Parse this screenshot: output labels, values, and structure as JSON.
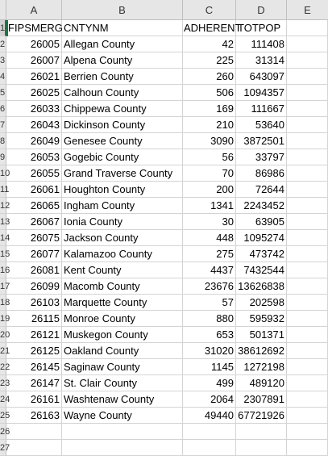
{
  "columns": [
    "A",
    "B",
    "C",
    "D",
    "E"
  ],
  "row_numbers": [
    "1",
    "2",
    "3",
    "4",
    "5",
    "6",
    "7",
    "8",
    "9",
    "10",
    "11",
    "12",
    "13",
    "14",
    "15",
    "16",
    "17",
    "18",
    "19",
    "20",
    "21",
    "22",
    "23",
    "24",
    "25",
    "26",
    "27"
  ],
  "header": {
    "fipsmerg": "FIPSMERG",
    "cntynm": "CNTYNM",
    "adherent": "ADHERENT",
    "totpop": "TOTPOP"
  },
  "rows": [
    {
      "fips": "26005",
      "name": "Allegan County",
      "adherent": "42",
      "totpop": "111408"
    },
    {
      "fips": "26007",
      "name": "Alpena County",
      "adherent": "225",
      "totpop": "31314"
    },
    {
      "fips": "26021",
      "name": "Berrien County",
      "adherent": "260",
      "totpop": "643097"
    },
    {
      "fips": "26025",
      "name": "Calhoun County",
      "adherent": "506",
      "totpop": "1094357"
    },
    {
      "fips": "26033",
      "name": "Chippewa County",
      "adherent": "169",
      "totpop": "111667"
    },
    {
      "fips": "26043",
      "name": "Dickinson County",
      "adherent": "210",
      "totpop": "53640"
    },
    {
      "fips": "26049",
      "name": "Genesee County",
      "adherent": "3090",
      "totpop": "3872501"
    },
    {
      "fips": "26053",
      "name": "Gogebic County",
      "adherent": "56",
      "totpop": "33797"
    },
    {
      "fips": "26055",
      "name": "Grand Traverse County",
      "adherent": "70",
      "totpop": "86986"
    },
    {
      "fips": "26061",
      "name": "Houghton County",
      "adherent": "200",
      "totpop": "72644"
    },
    {
      "fips": "26065",
      "name": "Ingham County",
      "adherent": "1341",
      "totpop": "2243452"
    },
    {
      "fips": "26067",
      "name": "Ionia County",
      "adherent": "30",
      "totpop": "63905"
    },
    {
      "fips": "26075",
      "name": "Jackson County",
      "adherent": "448",
      "totpop": "1095274"
    },
    {
      "fips": "26077",
      "name": "Kalamazoo County",
      "adherent": "275",
      "totpop": "473742"
    },
    {
      "fips": "26081",
      "name": "Kent County",
      "adherent": "4437",
      "totpop": "7432544"
    },
    {
      "fips": "26099",
      "name": "Macomb County",
      "adherent": "23676",
      "totpop": "13626838"
    },
    {
      "fips": "26103",
      "name": "Marquette County",
      "adherent": "57",
      "totpop": "202598"
    },
    {
      "fips": "26115",
      "name": "Monroe County",
      "adherent": "880",
      "totpop": "595932"
    },
    {
      "fips": "26121",
      "name": "Muskegon County",
      "adherent": "653",
      "totpop": "501371"
    },
    {
      "fips": "26125",
      "name": "Oakland County",
      "adherent": "31020",
      "totpop": "38612692"
    },
    {
      "fips": "26145",
      "name": "Saginaw County",
      "adherent": "1145",
      "totpop": "1272198"
    },
    {
      "fips": "26147",
      "name": "St. Clair County",
      "adherent": "499",
      "totpop": "489120"
    },
    {
      "fips": "26161",
      "name": "Washtenaw County",
      "adherent": "2064",
      "totpop": "2307891"
    },
    {
      "fips": "26163",
      "name": "Wayne County",
      "adherent": "49440",
      "totpop": "67721926"
    }
  ]
}
